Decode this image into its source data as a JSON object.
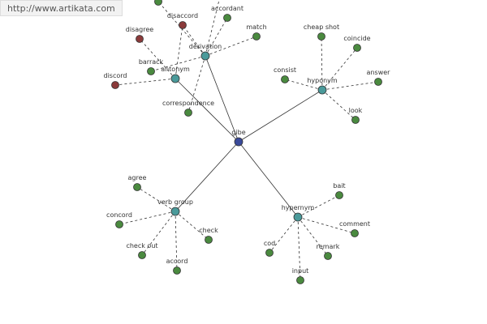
{
  "header": {
    "url": "http://www.artikata.com"
  },
  "nodes": [
    {
      "label": "gibe"
    },
    {
      "label": "derivation"
    },
    {
      "label": "antonym"
    },
    {
      "label": "hyponym"
    },
    {
      "label": "verb group"
    },
    {
      "label": "hypernym"
    },
    {
      "label": "accordant"
    },
    {
      "label": "match"
    },
    {
      "label": "disaccord"
    },
    {
      "label": "correspondence"
    },
    {
      "label": "barrack"
    },
    {
      "label": "disagree"
    },
    {
      "label": "discord"
    },
    {
      "label": "cheap shot"
    },
    {
      "label": "coincide"
    },
    {
      "label": "consist"
    },
    {
      "label": "answer"
    },
    {
      "label": "look"
    },
    {
      "label": "agree"
    },
    {
      "label": "concord"
    },
    {
      "label": "check out"
    },
    {
      "label": "accord"
    },
    {
      "label": "check"
    },
    {
      "label": "bait"
    },
    {
      "label": "comment"
    },
    {
      "label": "remark"
    },
    {
      "label": "cod"
    },
    {
      "label": "input"
    }
  ]
}
